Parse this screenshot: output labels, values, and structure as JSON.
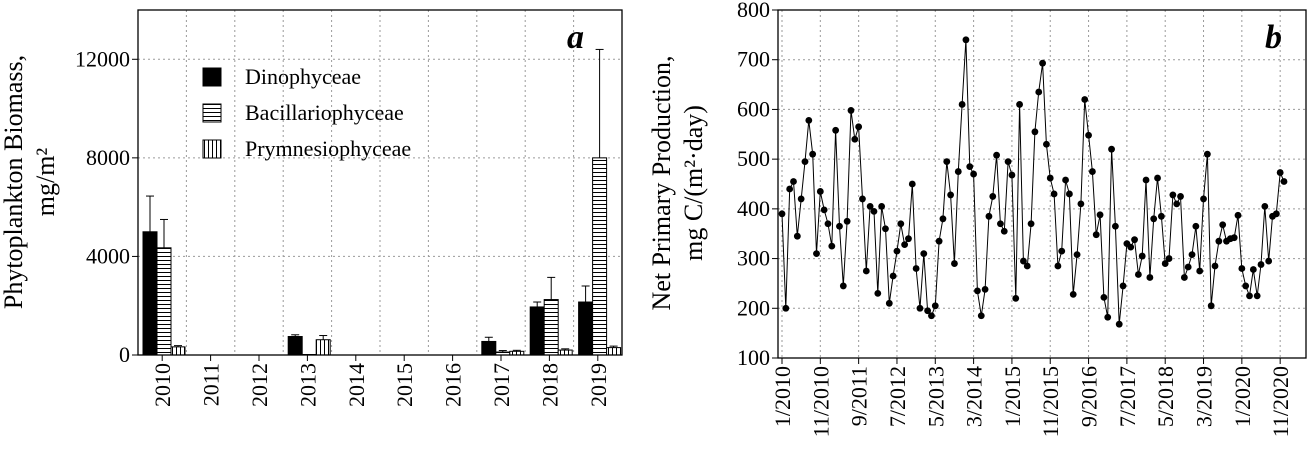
{
  "chart_data": [
    {
      "type": "bar",
      "panel_label": "a",
      "ylabel_line1": "Phytoplankton Biomass,",
      "ylabel_line2": "mg/m²",
      "categories": [
        "2010",
        "2011",
        "2012",
        "2013",
        "2014",
        "2015",
        "2016",
        "2017",
        "2018",
        "2019"
      ],
      "ylim": [
        0,
        14000
      ],
      "yticks": [
        0,
        4000,
        8000,
        12000
      ],
      "grid": true,
      "legend_position": "top-left",
      "series": [
        {
          "name": "Dinophyceae",
          "fill": "solid",
          "color": "#000000",
          "values": [
            5000,
            0,
            0,
            750,
            0,
            0,
            0,
            550,
            1950,
            2150
          ],
          "errors": [
            1450,
            0,
            0,
            70,
            0,
            0,
            0,
            170,
            200,
            650
          ]
        },
        {
          "name": "Bacillariophyceae",
          "fill": "horizontal-hatch",
          "color": "#000000",
          "values": [
            4350,
            0,
            0,
            20,
            0,
            0,
            0,
            120,
            2250,
            8000
          ],
          "errors": [
            1150,
            0,
            0,
            0,
            0,
            0,
            0,
            60,
            900,
            4400
          ]
        },
        {
          "name": "Prymnesiophyceae",
          "fill": "vertical-hatch",
          "color": "#000000",
          "values": [
            330,
            0,
            0,
            620,
            0,
            0,
            0,
            150,
            200,
            300
          ],
          "errors": [
            50,
            0,
            0,
            170,
            0,
            0,
            0,
            40,
            50,
            60
          ]
        }
      ]
    },
    {
      "type": "line",
      "panel_label": "b",
      "ylabel_line1": "Net Primary Production,",
      "ylabel_line2": "mg C/(m²·day)",
      "ylim": [
        100,
        800
      ],
      "yticks": [
        100,
        200,
        300,
        400,
        500,
        600,
        700,
        800
      ],
      "x_tick_labels": [
        "1/2010",
        "11/2010",
        "9/2011",
        "7/2012",
        "5/2013",
        "3/2014",
        "1/2015",
        "11/2015",
        "9/2016",
        "7/2017",
        "5/2018",
        "3/2019",
        "1/2020",
        "11/2020"
      ],
      "x_start": "1/2010",
      "grid": true,
      "marker": "circle",
      "series": [
        {
          "values": [
            390,
            200,
            440,
            455,
            345,
            420,
            495,
            578,
            510,
            310,
            435,
            398,
            370,
            325,
            558,
            365,
            245,
            375,
            598,
            540,
            565,
            420,
            275,
            405,
            395,
            230,
            405,
            360,
            210,
            265,
            315,
            370,
            328,
            340,
            450,
            280,
            200,
            310,
            195,
            185,
            205,
            335,
            380,
            495,
            428,
            290,
            475,
            610,
            740,
            485,
            470,
            235,
            185,
            238,
            385,
            425,
            508,
            370,
            355,
            495,
            468,
            220,
            610,
            295,
            285,
            370,
            555,
            635,
            693,
            530,
            462,
            430,
            285,
            315,
            458,
            430,
            228,
            308,
            410,
            620,
            548,
            475,
            348,
            388,
            222,
            182,
            520,
            365,
            168,
            245,
            330,
            323,
            338,
            268,
            305,
            458,
            262,
            380,
            462,
            385,
            290,
            300,
            428,
            410,
            425,
            262,
            283,
            308,
            365,
            275,
            420,
            510,
            205,
            285,
            335,
            368,
            335,
            340,
            342,
            387,
            280,
            245,
            225,
            278,
            225,
            288,
            405,
            295,
            385,
            390,
            473,
            455
          ]
        }
      ]
    }
  ]
}
